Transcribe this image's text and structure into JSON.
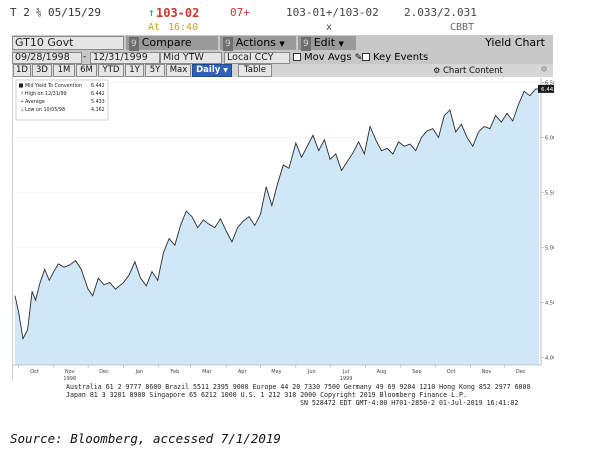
{
  "quote": {
    "ticker": "T 2",
    "coupon_frac": "⅜",
    "maturity": "05/15/29",
    "arrow": "↑",
    "price": "103-02",
    "change": "07+",
    "bid_ask": "103-01+/103-02",
    "yields": "2.033/2.031",
    "at_label": "At",
    "time": "16:40",
    "size_sep": "x",
    "source": "CBBT"
  },
  "toolbar": {
    "security": "GT10 Govt",
    "compare_num": "9",
    "compare": "Compare",
    "actions_num": "9",
    "actions": "Actions",
    "edit_num": "9",
    "edit": "Edit",
    "title": "Yield Chart"
  },
  "params": {
    "start_date": "09/28/1998",
    "end_date": "12/31/1999",
    "field": "Mid YTW",
    "currency": "Local CCY",
    "mov_avgs": "Mov Avgs",
    "key_events": "Key Events"
  },
  "periods": [
    "1D",
    "3D",
    "1M",
    "6M",
    "YTD",
    "1Y",
    "5Y",
    "Max",
    "Daily"
  ],
  "period_selected": "Daily",
  "tabs": {
    "table": "Table",
    "chart_content": "Chart Content"
  },
  "legend": {
    "items": [
      {
        "label": "Mid Yield To Convention",
        "value": "6.442"
      },
      {
        "label": "High on 12/31/99",
        "value": "6.442"
      },
      {
        "label": "Average",
        "value": "5.433"
      },
      {
        "label": "Low on 10/05/98",
        "value": "4.162"
      }
    ]
  },
  "chart_data": {
    "type": "area",
    "title": "",
    "xlabel": "",
    "ylabel": "",
    "y_ticks": [
      "6.500",
      "6.000",
      "5.500",
      "5.000",
      "4.500",
      "4.000"
    ],
    "x_ticks": [
      "Oct",
      "Nov",
      "Dec",
      "Jan",
      "Feb",
      "Mar",
      "Apr",
      "May",
      "Jun",
      "Jul",
      "Aug",
      "Sep",
      "Oct",
      "Nov",
      "Dec"
    ],
    "x_year_labels": [
      {
        "label": "1998",
        "under": "Nov"
      },
      {
        "label": "1999",
        "under": "Jul"
      }
    ],
    "ylim": [
      3.93,
      6.55
    ],
    "last_value_label": "6.442",
    "last_value_suffix": "GT10",
    "series": [
      {
        "name": "Mid Yield To Convention",
        "x": [
          "1998-09-28",
          "1998-10-01",
          "1998-10-05",
          "1998-10-09",
          "1998-10-13",
          "1998-10-16",
          "1998-10-20",
          "1998-10-24",
          "1998-10-28",
          "1998-11-01",
          "1998-11-05",
          "1998-11-10",
          "1998-11-15",
          "1998-11-20",
          "1998-11-25",
          "1998-12-01",
          "1998-12-05",
          "1998-12-10",
          "1998-12-15",
          "1998-12-20",
          "1998-12-25",
          "1999-01-01",
          "1999-01-06",
          "1999-01-11",
          "1999-01-16",
          "1999-01-21",
          "1999-01-26",
          "1999-01-31",
          "1999-02-05",
          "1999-02-10",
          "1999-02-15",
          "1999-02-20",
          "1999-02-25",
          "1999-03-02",
          "1999-03-07",
          "1999-03-12",
          "1999-03-17",
          "1999-03-22",
          "1999-03-27",
          "1999-04-01",
          "1999-04-06",
          "1999-04-11",
          "1999-04-16",
          "1999-04-21",
          "1999-04-26",
          "1999-05-01",
          "1999-05-06",
          "1999-05-11",
          "1999-05-16",
          "1999-05-21",
          "1999-05-26",
          "1999-06-01",
          "1999-06-06",
          "1999-06-11",
          "1999-06-16",
          "1999-06-21",
          "1999-06-26",
          "1999-07-01",
          "1999-07-06",
          "1999-07-11",
          "1999-07-16",
          "1999-07-21",
          "1999-07-26",
          "1999-07-31",
          "1999-08-05",
          "1999-08-10",
          "1999-08-15",
          "1999-08-20",
          "1999-08-25",
          "1999-08-30",
          "1999-09-04",
          "1999-09-09",
          "1999-09-14",
          "1999-09-19",
          "1999-09-24",
          "1999-09-29",
          "1999-10-04",
          "1999-10-09",
          "1999-10-14",
          "1999-10-19",
          "1999-10-24",
          "1999-10-29",
          "1999-11-03",
          "1999-11-08",
          "1999-11-13",
          "1999-11-18",
          "1999-11-23",
          "1999-11-28",
          "1999-12-03",
          "1999-12-08",
          "1999-12-13",
          "1999-12-18",
          "1999-12-23",
          "1999-12-28",
          "1999-12-31"
        ],
        "values": [
          4.56,
          4.42,
          4.17,
          4.25,
          4.6,
          4.52,
          4.68,
          4.8,
          4.7,
          4.78,
          4.85,
          4.82,
          4.84,
          4.88,
          4.8,
          4.62,
          4.56,
          4.72,
          4.66,
          4.68,
          4.62,
          4.68,
          4.75,
          4.87,
          4.72,
          4.65,
          4.78,
          4.7,
          4.95,
          5.08,
          5.02,
          5.2,
          5.33,
          5.28,
          5.18,
          5.25,
          5.21,
          5.18,
          5.26,
          5.15,
          5.05,
          5.18,
          5.24,
          5.28,
          5.2,
          5.3,
          5.55,
          5.38,
          5.58,
          5.75,
          5.72,
          5.95,
          5.82,
          5.92,
          6.02,
          5.88,
          5.98,
          5.8,
          5.85,
          5.7,
          5.78,
          5.86,
          5.96,
          5.85,
          6.1,
          5.98,
          5.88,
          5.9,
          5.85,
          5.96,
          5.92,
          5.94,
          5.88,
          6.0,
          6.06,
          6.08,
          6.0,
          6.2,
          6.25,
          6.05,
          6.12,
          6.0,
          5.92,
          6.05,
          6.1,
          6.08,
          6.2,
          6.14,
          6.22,
          6.15,
          6.3,
          6.42,
          6.38,
          6.44,
          6.442
        ]
      }
    ]
  },
  "footer": {
    "line1": "Australia 61 2 9777 8600 Brazil 5511 2395 9000 Europe 44 20 7330 7500 Germany 49 69 9204 1210 Hong Kong 852 2977 6000",
    "line2": "Japan 81 3 3201 8900         Singapore 65 6212 1000      U.S. 1 212 318 2000          Copyright 2019 Bloomberg Finance L.P.",
    "line3": "SN 528472 EDT  GMT-4:00 H701-2850-2 01-Jul-2019 16:41:02"
  },
  "source_note": "Source: Bloomberg, accessed 7/1/2019",
  "colors": {
    "up": "#1e9e3e",
    "down": "#d0342c",
    "price": "#d0342c",
    "toolbar": "#c8c8c8",
    "area_fill": "#cfe7f7",
    "line": "#2b2b2b",
    "selected": "#2f62b4"
  }
}
